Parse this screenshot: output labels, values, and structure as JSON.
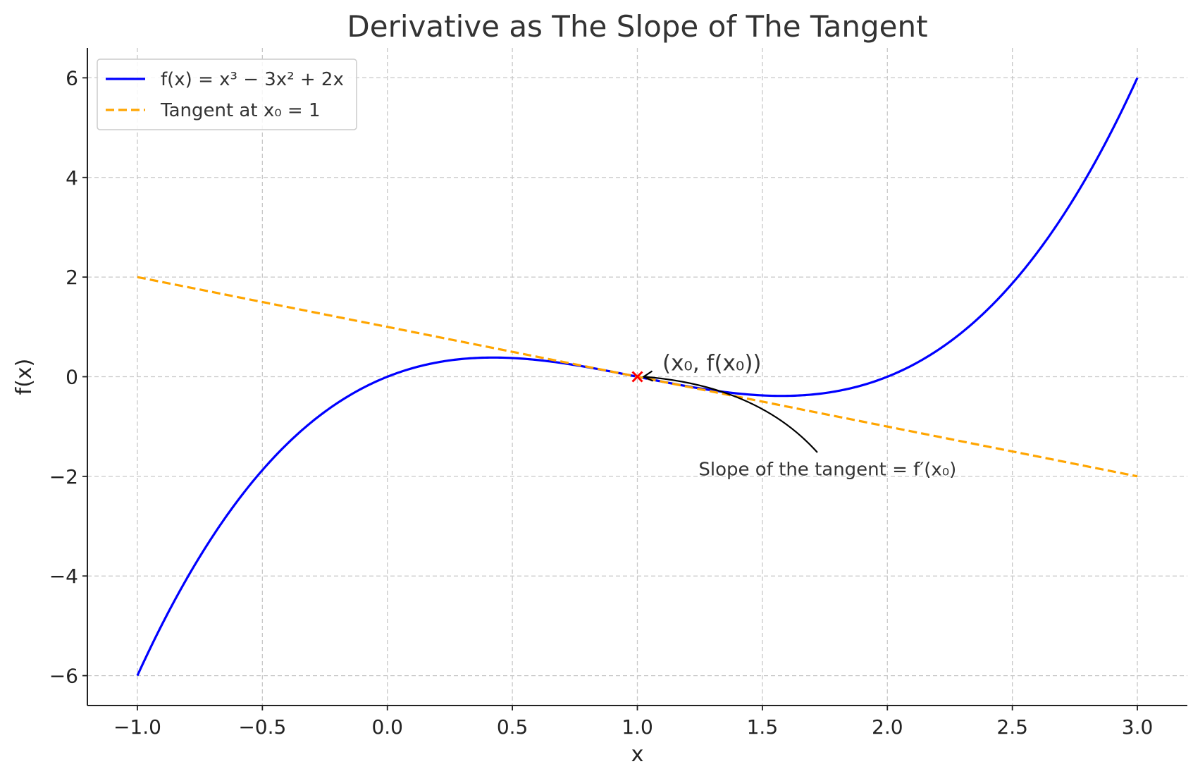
{
  "chart_data": {
    "type": "line",
    "title": "Derivative as The Slope of The Tangent",
    "xlabel": "x",
    "ylabel": "f(x)",
    "xlim": [
      -1.2,
      3.2
    ],
    "ylim": [
      -6.6,
      6.6
    ],
    "xticks": [
      -1.0,
      -0.5,
      0.0,
      0.5,
      1.0,
      1.5,
      2.0,
      2.5,
      3.0
    ],
    "yticks": [
      -6,
      -4,
      -2,
      0,
      2,
      4,
      6
    ],
    "xtick_labels": [
      "−1.0",
      "−0.5",
      "0.0",
      "0.5",
      "1.0",
      "1.5",
      "2.0",
      "2.5",
      "3.0"
    ],
    "ytick_labels": [
      "−6",
      "−4",
      "−2",
      "0",
      "2",
      "4",
      "6"
    ],
    "grid": true,
    "legend_position": "top-left",
    "series": [
      {
        "name": "f(x) = x³ − 3x² + 2x",
        "kind": "curve",
        "color": "#0000ff",
        "style": "solid",
        "coefficients": [
          1,
          -3,
          2,
          0
        ],
        "x_range": [
          -1,
          3
        ]
      },
      {
        "name": "Tangent at x₀ = 1",
        "kind": "line",
        "color": "#ffa500",
        "style": "dashed",
        "x": [
          -1,
          3
        ],
        "y": [
          2,
          -2
        ]
      }
    ],
    "point": {
      "x": 1,
      "y": 0,
      "marker": "x",
      "color": "#ff0000"
    },
    "annotations": [
      {
        "text": "(x₀, f(x₀))"
      },
      {
        "text": "Slope of the tangent = f′(x₀)"
      }
    ]
  }
}
